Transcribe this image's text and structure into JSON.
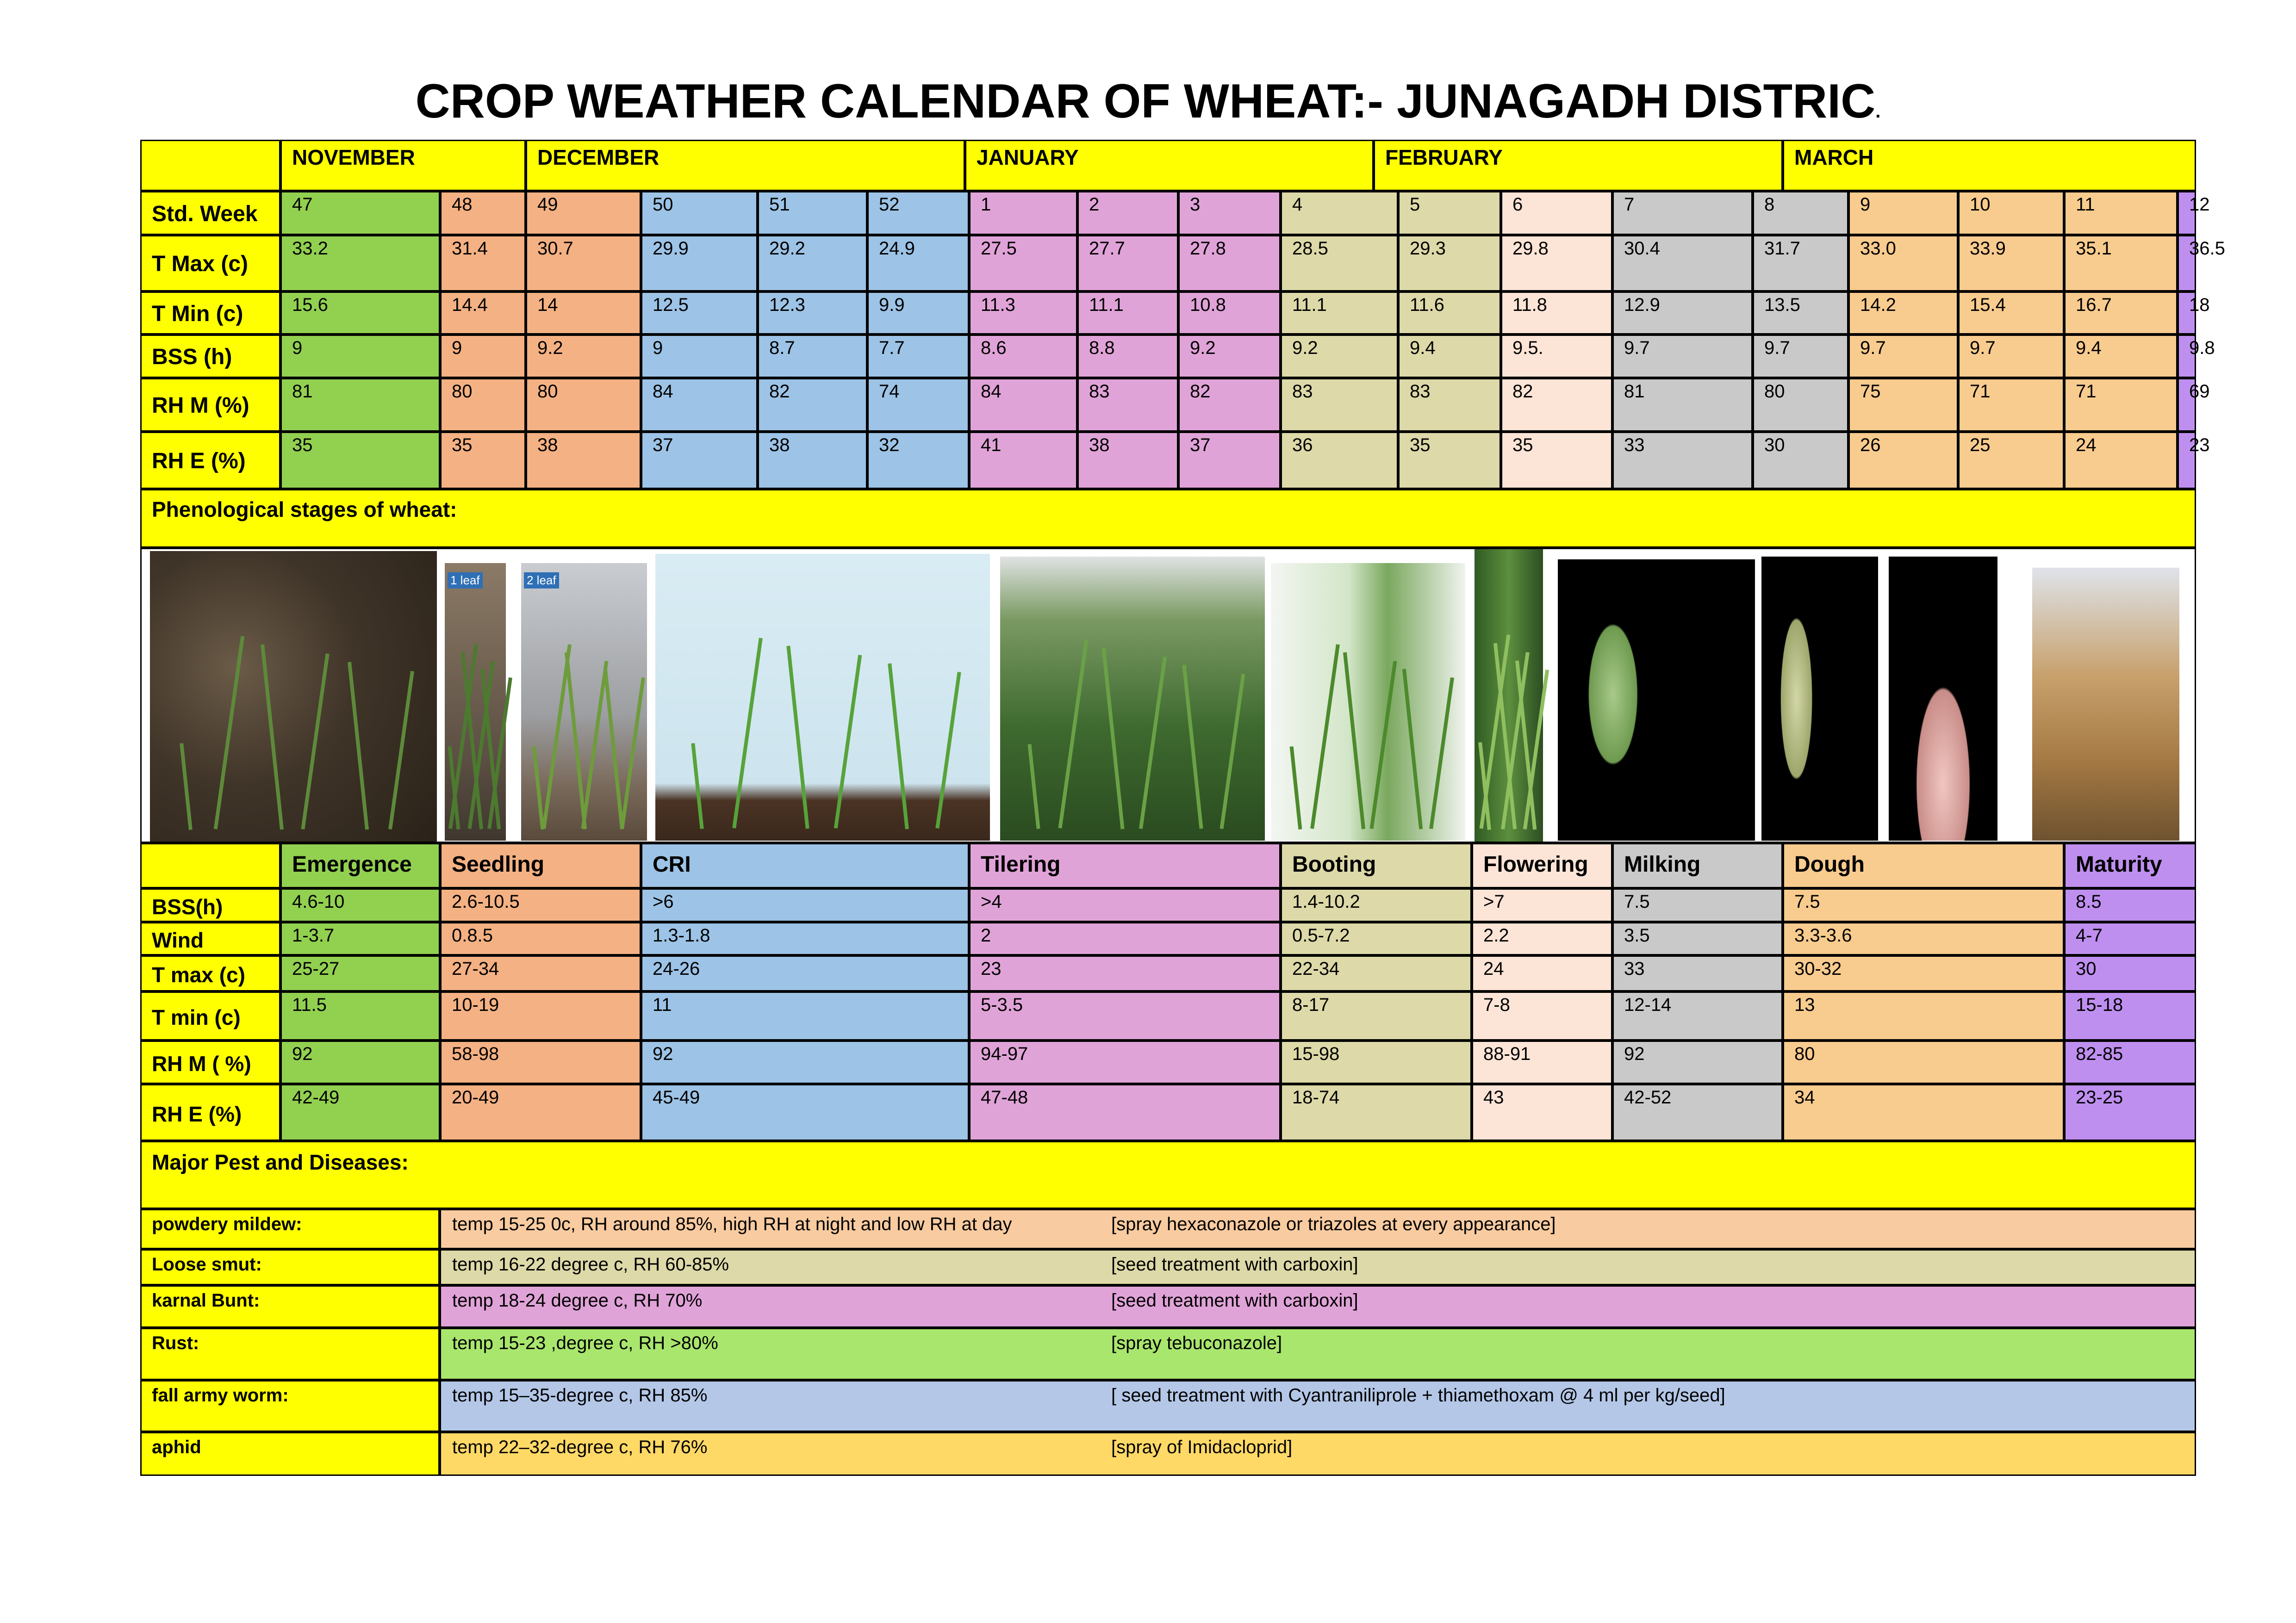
{
  "title": "CROP WEATHER CALENDAR OF WHEAT:- JUNAGADH DISTRIC",
  "title_suffix": ".",
  "months": [
    "NOVEMBER",
    "DECEMBER",
    "JANUARY",
    "FEBRUARY",
    "MARCH"
  ],
  "colors": {
    "yellow": "#ffff00",
    "green": "#92d050",
    "salmon": "#f4b183",
    "blue": "#9dc3e6",
    "pink": "#e0a3d8",
    "khaki": "#ddd9a8",
    "peach": "#fce4d6",
    "grey": "#c9c9c9",
    "orange": "#f8cb8e",
    "purple": "#bf8ff0",
    "pest_orange": "#f8cba0",
    "pest_khaki": "#ddd9a8",
    "pest_pink": "#e0a3d8",
    "pest_green": "#a9e66d",
    "pest_blue": "#b4c7e7",
    "pest_gold": "#ffd966"
  },
  "weekly": {
    "weeks": [
      "47",
      "48",
      "49",
      "50",
      "51",
      "52",
      "1",
      "2",
      "3",
      "4",
      "5",
      "6",
      "7",
      "8",
      "9",
      "10",
      "11",
      "12"
    ],
    "rows": [
      {
        "label": "Std. Week",
        "values": [
          "47",
          "48",
          "49",
          "50",
          "51",
          "52",
          "1",
          "2",
          "3",
          "4",
          "5",
          "6",
          "7",
          "8",
          "9",
          "10",
          "11",
          "12"
        ]
      },
      {
        "label": "T Max (c)",
        "values": [
          "33.2",
          "31.4",
          "30.7",
          "29.9",
          "29.2",
          "24.9",
          "27.5",
          "27.7",
          "27.8",
          "28.5",
          "29.3",
          "29.8",
          "30.4",
          "31.7",
          "33.0",
          "33.9",
          "35.1",
          "36.5"
        ]
      },
      {
        "label": "T Min (c)",
        "values": [
          "15.6",
          "14.4",
          "14",
          "12.5",
          "12.3",
          "9.9",
          "11.3",
          "11.1",
          "10.8",
          "11.1",
          "11.6",
          "11.8",
          "12.9",
          "13.5",
          "14.2",
          "15.4",
          "16.7",
          "18"
        ]
      },
      {
        "label": "BSS (h)",
        "values": [
          "9",
          "9",
          "9.2",
          "9",
          "8.7",
          "7.7",
          "8.6",
          "8.8",
          "9.2",
          "9.2",
          "9.4",
          "9.5.",
          "9.7",
          "9.7",
          "9.7",
          "9.7",
          "9.4",
          "9.8"
        ]
      },
      {
        "label": "RH M (%)",
        "values": [
          "81",
          "80",
          "80",
          "84",
          "82",
          "74",
          "84",
          "83",
          "82",
          "83",
          "83",
          "82",
          "81",
          "80",
          "75",
          "71",
          "71",
          "69"
        ]
      },
      {
        "label": "RH E (%)",
        "values": [
          "35",
          "35",
          "38",
          "37",
          "38",
          "32",
          "41",
          "38",
          "37",
          "36",
          "35",
          "35",
          "33",
          "30",
          "26",
          "25",
          "24",
          "23"
        ]
      }
    ]
  },
  "phenology_heading": "Phenological stages of wheat:",
  "photos": [
    {
      "name": "emergence-photo",
      "tag": ""
    },
    {
      "name": "one-leaf-photo",
      "tag": "1 leaf"
    },
    {
      "name": "two-leaf-photo",
      "tag": "2 leaf"
    },
    {
      "name": "cri-photo",
      "tag": ""
    },
    {
      "name": "tillering-photo",
      "tag": ""
    },
    {
      "name": "booting-photo",
      "tag": ""
    },
    {
      "name": "flowering-photo",
      "tag": ""
    },
    {
      "name": "milking-photo",
      "tag": ""
    },
    {
      "name": "dough-photo",
      "tag": ""
    },
    {
      "name": "dough-closeup-photo",
      "tag": ""
    },
    {
      "name": "maturity-photo",
      "tag": ""
    }
  ],
  "stages": {
    "names": [
      "Emergence",
      "Seedling",
      "CRI",
      "Tilering",
      "Booting",
      "Flowering",
      "Milking",
      "Dough",
      "Maturity"
    ],
    "rows": [
      {
        "label": "BSS(h)",
        "values": [
          "4.6-10",
          "2.6-10.5",
          ">6",
          ">4",
          "1.4-10.2",
          ">7",
          "7.5",
          "7.5",
          "8.5"
        ]
      },
      {
        "label": "Wind",
        "values": [
          "1-3.7",
          "0.8.5",
          "1.3-1.8",
          "2",
          "0.5-7.2",
          "2.2",
          "3.5",
          "3.3-3.6",
          "4-7"
        ]
      },
      {
        "label": "T max (c)",
        "values": [
          "25-27",
          "27-34",
          "24-26",
          "23",
          "22-34",
          "24",
          "33",
          "30-32",
          "30"
        ]
      },
      {
        "label": "T min  (c)",
        "values": [
          "11.5",
          "10-19",
          "11",
          "5-3.5",
          "8-17",
          "7-8",
          "12-14",
          "13",
          "15-18"
        ]
      },
      {
        "label": "RH M ( %)",
        "values": [
          "92",
          "58-98",
          "92",
          "94-97",
          "15-98",
          "88-91",
          "92",
          "80",
          "82-85"
        ]
      },
      {
        "label": "RH E (%)",
        "values": [
          "42-49",
          "20-49",
          "45-49",
          "47-48",
          "18-74",
          "43",
          "42-52",
          "34",
          "23-25"
        ]
      }
    ]
  },
  "pests_heading": "Major Pest and Diseases:",
  "pests": [
    {
      "name": "powdery mildew:",
      "conditions": "temp 15-25 0c, RH around 85%, high RH at night and low RH at day",
      "control": "[spray hexaconazole or triazoles at every appearance]"
    },
    {
      "name": "Loose smut:",
      "conditions": "temp 16-22 degree c, RH 60-85%",
      "control": "[seed treatment with carboxin]"
    },
    {
      "name": "karnal Bunt:",
      "conditions": "temp 18-24 degree c, RH 70%",
      "control": "[seed treatment with carboxin]"
    },
    {
      "name": "Rust:",
      "conditions": "temp 15-23 ,degree c, RH >80%",
      "control": "[spray tebuconazole]"
    },
    {
      "name": "fall army worm:",
      "conditions": " temp 15–35-degree c, RH 85%",
      "control": "[ seed treatment with Cyantraniliprole + thiamethoxam @ 4 ml per kg/seed]"
    },
    {
      "name": "aphid",
      "conditions": "temp 22–32-degree c, RH 76%",
      "control": "[spray of Imidacloprid]"
    }
  ]
}
